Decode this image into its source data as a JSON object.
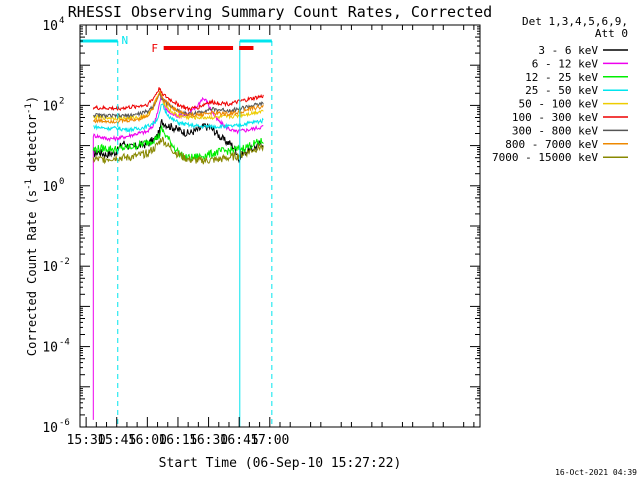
{
  "chart_data": {
    "type": "line",
    "title": "RHESSI Observing Summary Count Rates, Corrected",
    "xlabel": "Start Time (06-Sep-10 15:27:22)",
    "ylabel_main": "Corrected Count Rate (s",
    "ylabel_sup1": "-1",
    "ylabel_mid": " detector",
    "ylabel_sup2": "-1",
    "ylabel_end": ")",
    "y_scale": "log",
    "ylim": [
      1e-06,
      10000
    ],
    "xlim_min": [
      927,
      1123
    ],
    "x_ticks": [
      {
        "label": "15:30",
        "min": 930
      },
      {
        "label": "15:45",
        "min": 945
      },
      {
        "label": "16:00",
        "min": 960
      },
      {
        "label": "16:15",
        "min": 975
      },
      {
        "label": "16:30",
        "min": 990
      },
      {
        "label": "16:45",
        "min": 1005
      },
      {
        "label": "17:00",
        "min": 1020
      }
    ],
    "y_ticks": [
      {
        "base": "10",
        "exp": "-6",
        "value": 1e-06
      },
      {
        "base": "10",
        "exp": "-4",
        "value": 0.0001
      },
      {
        "base": "10",
        "exp": "-2",
        "value": 0.01
      },
      {
        "base": "10",
        "exp": "0",
        "value": 1
      },
      {
        "base": "10",
        "exp": "2",
        "value": 100
      },
      {
        "base": "10",
        "exp": "4",
        "value": 10000
      }
    ],
    "legend_header": [
      "Det 1,3,4,5,6,9,",
      "Att 0"
    ],
    "night_label": "N",
    "flare_label": "F",
    "flag_color_night": "#00e5ee",
    "flag_color_flare": "#ee0000",
    "night_intervals": [
      [
        927,
        945.5
      ],
      [
        1005.3,
        1021
      ]
    ],
    "flare_intervals": [
      [
        968,
        1002
      ],
      [
        1005,
        1012
      ]
    ],
    "series": [
      {
        "name": "3 - 6 keV",
        "color": "#000000",
        "x": [
          933.5,
          936,
          940,
          945,
          948,
          952,
          956,
          960,
          964,
          966,
          967,
          970,
          975,
          980,
          985,
          988,
          991,
          995,
          998,
          1001,
          1004,
          1005,
          1006,
          1008,
          1011,
          1014,
          1017
        ],
        "y": [
          6,
          7,
          6,
          7,
          12,
          9,
          10,
          11,
          15,
          22,
          40,
          32,
          25,
          20,
          25,
          30,
          28,
          18,
          13,
          11,
          7,
          4,
          6,
          7,
          8,
          10,
          12
        ]
      },
      {
        "name": "6 - 12 keV",
        "color": "#ee00ee",
        "x": [
          933.5,
          933.5,
          936,
          940,
          945,
          950,
          955,
          960,
          963,
          965,
          967,
          969,
          972,
          975,
          980,
          984,
          987,
          989,
          991,
          994,
          998,
          1003,
          1008,
          1013,
          1017
        ],
        "y": [
          1.5e-06,
          18,
          17,
          15,
          15,
          17,
          20,
          22,
          32,
          70,
          180,
          80,
          60,
          55,
          60,
          90,
          150,
          130,
          80,
          45,
          30,
          22,
          24,
          27,
          30
        ]
      },
      {
        "name": "12 - 25 keV",
        "color": "#00ee00",
        "x": [
          933.5,
          937,
          941,
          945,
          950,
          955,
          960,
          964,
          966,
          967,
          969,
          972,
          975,
          978,
          982,
          986,
          990,
          995,
          1000,
          1004,
          1008,
          1012,
          1017
        ],
        "y": [
          8,
          8.5,
          8.5,
          8,
          9,
          10,
          12,
          15,
          18,
          26,
          18,
          11,
          7,
          5,
          5,
          5.5,
          6,
          7,
          7.5,
          8,
          9,
          11,
          13
        ]
      },
      {
        "name": "25 - 50 keV",
        "color": "#00e5ee",
        "x": [
          933.5,
          937,
          941,
          945,
          950,
          955,
          960,
          964,
          966,
          967,
          969,
          972,
          976,
          981,
          986,
          990,
          995,
          1000,
          1004,
          1008,
          1012,
          1017
        ],
        "y": [
          30,
          28,
          27,
          27,
          25,
          26,
          30,
          40,
          60,
          110,
          70,
          45,
          36,
          32,
          30,
          30,
          30,
          30,
          31,
          35,
          38,
          42
        ]
      },
      {
        "name": "50 - 100 keV",
        "color": "#eecc00",
        "x": [
          933.5,
          937,
          941,
          945,
          950,
          955,
          960,
          963,
          966,
          968,
          971,
          975,
          980,
          985,
          990,
          995,
          1000,
          1004,
          1008,
          1012,
          1017
        ],
        "y": [
          50,
          50,
          49,
          48,
          48,
          50,
          55,
          100,
          210,
          120,
          75,
          55,
          50,
          50,
          50,
          50,
          52,
          55,
          60,
          65,
          75
        ]
      },
      {
        "name": "100 - 300 keV",
        "color": "#ee0000",
        "x": [
          933.5,
          937,
          941,
          945,
          950,
          955,
          960,
          963,
          966,
          968,
          972,
          976,
          980,
          985,
          990,
          995,
          1000,
          1004,
          1008,
          1012,
          1017
        ],
        "y": [
          88,
          85,
          85,
          83,
          88,
          95,
          105,
          150,
          270,
          180,
          130,
          100,
          80,
          90,
          120,
          115,
          110,
          120,
          135,
          150,
          170
        ]
      },
      {
        "name": "300 - 800 keV",
        "color": "#555555",
        "x": [
          933.5,
          937,
          941,
          945,
          950,
          955,
          960,
          963,
          966,
          968,
          972,
          976,
          980,
          985,
          990,
          995,
          1000,
          1004,
          1008,
          1012,
          1017
        ],
        "y": [
          58,
          56,
          55,
          54,
          56,
          60,
          70,
          100,
          190,
          130,
          90,
          70,
          60,
          65,
          80,
          78,
          75,
          80,
          90,
          100,
          110
        ]
      },
      {
        "name": "800 - 7000 keV",
        "color": "#ee8800",
        "x": [
          933.5,
          937,
          941,
          945,
          950,
          955,
          960,
          963,
          966,
          968,
          972,
          976,
          980,
          985,
          990,
          995,
          1000,
          1004,
          1008,
          1012,
          1017
        ],
        "y": [
          42,
          41,
          41,
          40,
          42,
          45,
          55,
          90,
          230,
          140,
          90,
          68,
          58,
          58,
          65,
          63,
          62,
          66,
          75,
          85,
          95
        ]
      },
      {
        "name": "7000 - 15000 keV",
        "color": "#888800",
        "x": [
          933.5,
          937,
          941,
          945,
          950,
          955,
          960,
          964,
          967,
          970,
          975,
          980,
          985,
          990,
          995,
          1000,
          1004,
          1008,
          1012,
          1017
        ],
        "y": [
          4.5,
          4.5,
          4.8,
          5,
          5,
          5.5,
          6.5,
          9,
          15,
          10,
          6,
          4.5,
          4.2,
          4.3,
          4.5,
          5,
          5.5,
          6.5,
          8,
          10
        ]
      }
    ]
  },
  "footer": {
    "timestamp": "16-Oct-2021 04:39"
  }
}
